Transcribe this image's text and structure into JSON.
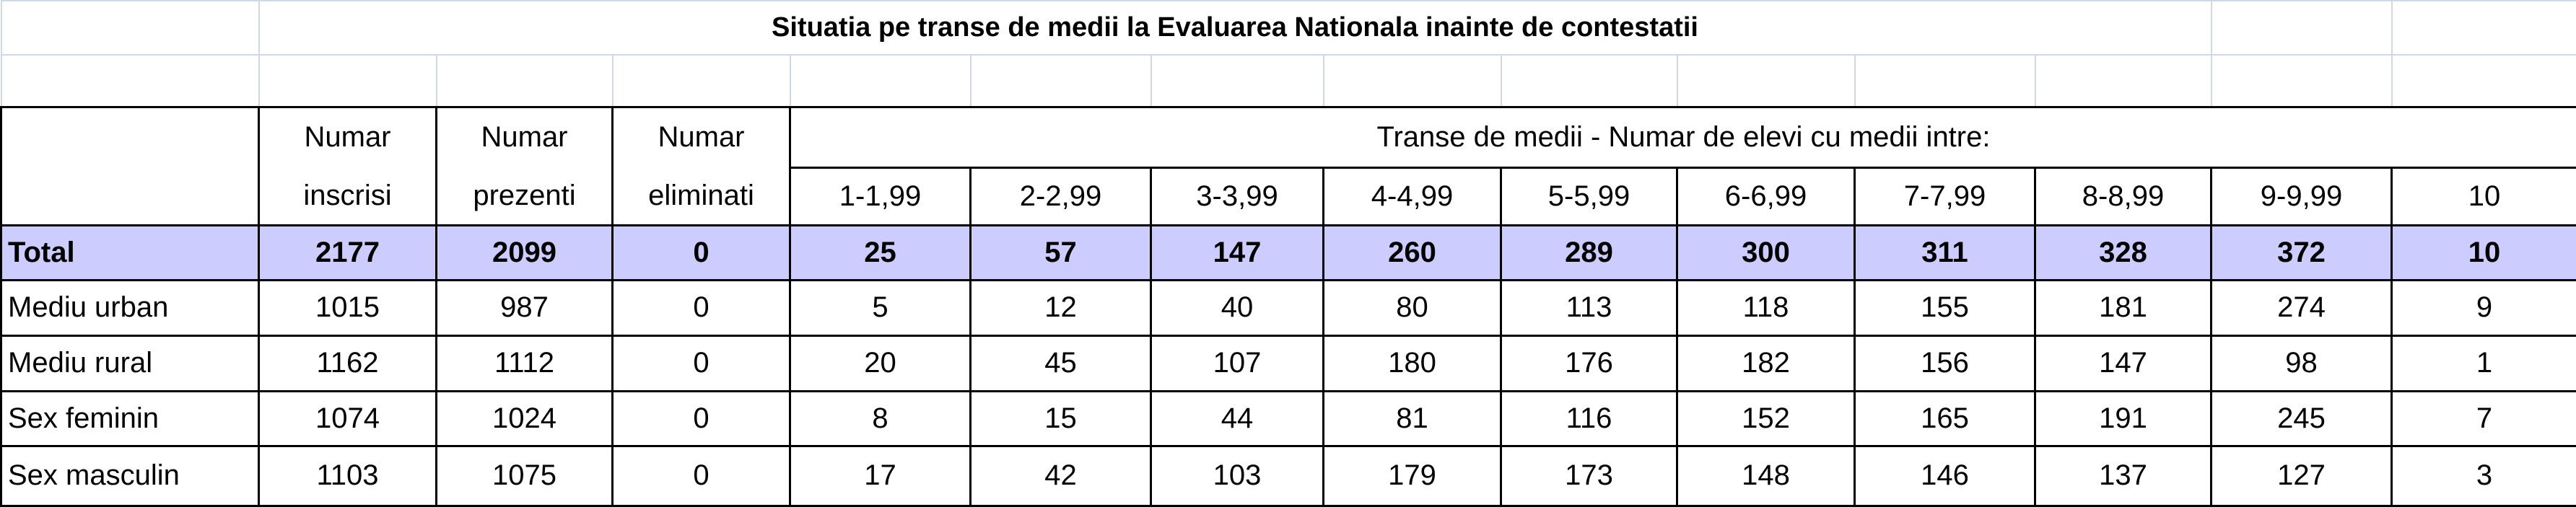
{
  "title": "Situatia pe transe de medii la Evaluarea Nationala inainte de contestatii",
  "header_row_1": [
    "Numar",
    "Numar",
    "Numar",
    "Transe de medii - Numar de elevi cu medii intre:"
  ],
  "header_row_2": [
    "inscrisi",
    "prezenti",
    "eliminati",
    "1-1,99",
    "2-2,99",
    "3-3,99",
    "4-4,99",
    "5-5,99",
    "6-6,99",
    "7-7,99",
    "8-8,99",
    "9-9,99",
    "10"
  ],
  "rows": [
    {
      "label": "Total",
      "values": [
        2177,
        2099,
        0,
        25,
        57,
        147,
        260,
        289,
        300,
        311,
        328,
        372,
        10
      ]
    },
    {
      "label": "Mediu urban",
      "values": [
        1015,
        987,
        0,
        5,
        12,
        40,
        80,
        113,
        118,
        155,
        181,
        274,
        9
      ]
    },
    {
      "label": "Mediu rural",
      "values": [
        1162,
        1112,
        0,
        20,
        45,
        107,
        180,
        176,
        182,
        156,
        147,
        98,
        1
      ]
    },
    {
      "label": "Sex feminin",
      "values": [
        1074,
        1024,
        0,
        8,
        15,
        44,
        81,
        116,
        152,
        165,
        191,
        245,
        7
      ]
    },
    {
      "label": "Sex masculin",
      "values": [
        1103,
        1075,
        0,
        17,
        42,
        103,
        179,
        173,
        148,
        146,
        137,
        127,
        3
      ]
    }
  ]
}
